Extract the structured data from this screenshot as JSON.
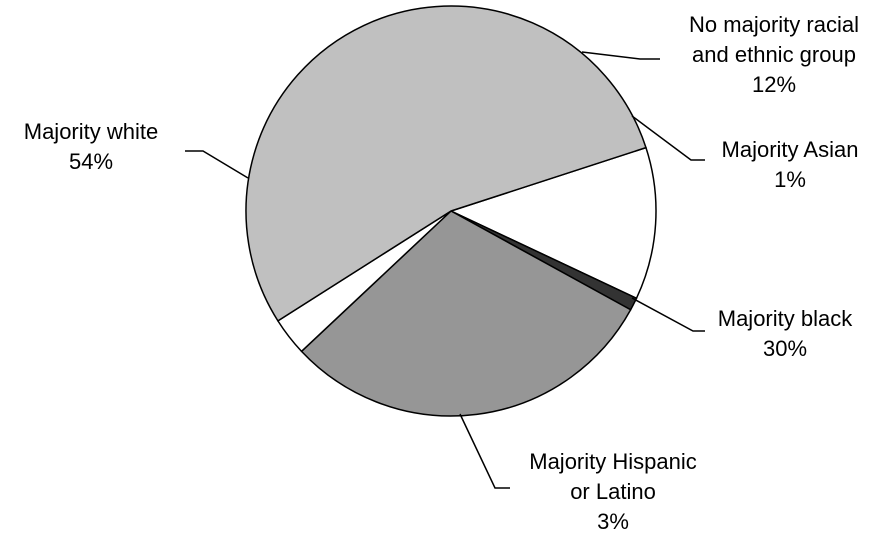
{
  "chart_data": {
    "type": "pie",
    "title": "",
    "slices": [
      {
        "label_lines": [
          "No majority racial",
          "and ethnic group"
        ],
        "value_label": "12%",
        "value": 12,
        "color": "#ffffff"
      },
      {
        "label_lines": [
          "Majority Asian"
        ],
        "value_label": "1%",
        "value": 1,
        "color": "#333333"
      },
      {
        "label_lines": [
          "Majority black"
        ],
        "value_label": "30%",
        "value": 30,
        "color": "#969696"
      },
      {
        "label_lines": [
          "Majority Hispanic",
          "or Latino"
        ],
        "value_label": "3%",
        "value": 3,
        "color": "#ffffff"
      },
      {
        "label_lines": [
          "Majority white"
        ],
        "value_label": "54%",
        "value": 54,
        "color": "#c0c0c0"
      }
    ]
  }
}
